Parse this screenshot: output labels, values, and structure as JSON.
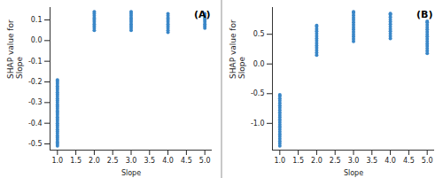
{
  "chart_data": [
    {
      "type": "scatter",
      "annotation": "(A)",
      "x_label": "Slope",
      "y_label": "SHAP value for\nSlope",
      "color": "#3a87c8",
      "x": [
        1,
        1,
        1,
        1,
        1,
        1,
        1,
        1,
        1,
        1,
        1,
        1,
        1,
        1,
        1,
        1,
        1,
        1,
        1,
        1,
        1,
        1,
        1,
        1,
        1,
        1,
        1,
        1,
        1,
        1,
        1,
        1,
        1,
        2,
        2,
        2,
        2,
        2,
        2,
        2,
        2,
        2,
        2,
        3,
        3,
        3,
        3,
        3,
        3,
        3,
        3,
        3,
        3,
        4,
        4,
        4,
        4,
        4,
        4,
        4,
        4,
        4,
        4,
        5,
        5,
        5,
        5,
        5,
        5,
        5,
        5
      ],
      "values": [
        -0.51,
        -0.5,
        -0.49,
        -0.48,
        -0.47,
        -0.46,
        -0.45,
        -0.44,
        -0.43,
        -0.42,
        -0.41,
        -0.4,
        -0.39,
        -0.38,
        -0.37,
        -0.36,
        -0.35,
        -0.34,
        -0.33,
        -0.32,
        -0.31,
        -0.3,
        -0.29,
        -0.28,
        -0.27,
        -0.26,
        -0.25,
        -0.24,
        -0.23,
        -0.22,
        -0.21,
        -0.2,
        -0.19,
        0.05,
        0.06,
        0.07,
        0.08,
        0.09,
        0.1,
        0.11,
        0.12,
        0.13,
        0.14,
        0.05,
        0.06,
        0.07,
        0.08,
        0.09,
        0.1,
        0.11,
        0.12,
        0.13,
        0.14,
        0.04,
        0.05,
        0.06,
        0.07,
        0.08,
        0.09,
        0.1,
        0.11,
        0.12,
        0.13,
        0.06,
        0.07,
        0.08,
        0.09,
        0.1,
        0.11,
        0.12,
        0.13
      ],
      "xlim": [
        0.8,
        5.2
      ],
      "xticks": [
        {
          "value": 1,
          "label": "1.0"
        },
        {
          "value": 1.5,
          "label": "1.5"
        },
        {
          "value": 2,
          "label": "2.0"
        },
        {
          "value": 2.5,
          "label": "2.5"
        },
        {
          "value": 3,
          "label": "3.0"
        },
        {
          "value": 3.5,
          "label": "3.5"
        },
        {
          "value": 4,
          "label": "4.0"
        },
        {
          "value": 4.5,
          "label": "4.5"
        },
        {
          "value": 5,
          "label": "5.0"
        }
      ],
      "ylim": [
        -0.53,
        0.16
      ],
      "yticks": [
        -0.5,
        -0.4,
        -0.3,
        -0.2,
        -0.1,
        {
          "value": 0,
          "label": "0.0"
        },
        0.1
      ]
    },
    {
      "type": "scatter",
      "annotation": "(B)",
      "x_label": "Slope",
      "y_label": "SHAP value for\nSlope",
      "color": "#3a87c8",
      "x": [
        1,
        1,
        1,
        1,
        1,
        1,
        1,
        1,
        1,
        1,
        1,
        1,
        1,
        1,
        1,
        1,
        1,
        1,
        1,
        1,
        1,
        1,
        1,
        2,
        2,
        2,
        2,
        2,
        2,
        2,
        2,
        2,
        2,
        2,
        2,
        2,
        2,
        3,
        3,
        3,
        3,
        3,
        3,
        3,
        3,
        3,
        3,
        3,
        3,
        3,
        3,
        4,
        4,
        4,
        4,
        4,
        4,
        4,
        4,
        4,
        4,
        4,
        4,
        5,
        5,
        5,
        5,
        5,
        5,
        5,
        5,
        5,
        5,
        5,
        5,
        5,
        5,
        5
      ],
      "values": [
        -1.38,
        -1.34,
        -1.3,
        -1.26,
        -1.22,
        -1.18,
        -1.14,
        -1.1,
        -1.06,
        -1.02,
        -0.98,
        -0.94,
        -0.9,
        -0.86,
        -0.82,
        -0.78,
        -0.74,
        -0.7,
        -0.66,
        -0.62,
        -0.58,
        -0.54,
        -0.52,
        0.15,
        0.19,
        0.23,
        0.27,
        0.31,
        0.35,
        0.39,
        0.43,
        0.47,
        0.51,
        0.55,
        0.59,
        0.63,
        0.65,
        0.38,
        0.42,
        0.46,
        0.5,
        0.54,
        0.58,
        0.62,
        0.66,
        0.7,
        0.74,
        0.78,
        0.82,
        0.86,
        0.88,
        0.43,
        0.47,
        0.51,
        0.55,
        0.59,
        0.63,
        0.67,
        0.71,
        0.75,
        0.79,
        0.83,
        0.85,
        0.18,
        0.22,
        0.26,
        0.3,
        0.34,
        0.38,
        0.42,
        0.46,
        0.5,
        0.54,
        0.58,
        0.62,
        0.66,
        0.7,
        0.72
      ],
      "xlim": [
        0.8,
        5.2
      ],
      "xticks": [
        {
          "value": 1,
          "label": "1.0"
        },
        {
          "value": 1.5,
          "label": "1.5"
        },
        {
          "value": 2,
          "label": "2.0"
        },
        {
          "value": 2.5,
          "label": "2.5"
        },
        {
          "value": 3,
          "label": "3.0"
        },
        {
          "value": 3.5,
          "label": "3.5"
        },
        {
          "value": 4,
          "label": "4.0"
        },
        {
          "value": 4.5,
          "label": "4.5"
        },
        {
          "value": 5,
          "label": "5.0"
        }
      ],
      "ylim": [
        -1.45,
        0.95
      ],
      "yticks": [
        {
          "value": -1,
          "label": "-1.0"
        },
        -0.5,
        {
          "value": 0,
          "label": "0.0"
        },
        0.5
      ]
    }
  ]
}
